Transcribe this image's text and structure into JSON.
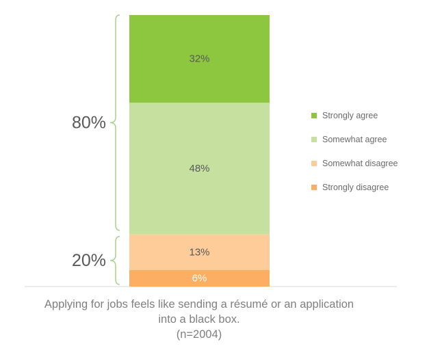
{
  "chart_data": {
    "type": "bar",
    "stacked": true,
    "categories": [
      ""
    ],
    "series": [
      {
        "name": "Strongly agree",
        "values": [
          32
        ],
        "color": "#8dc63f",
        "label": "32%",
        "label_color": "#595959"
      },
      {
        "name": "Somewhat agree",
        "values": [
          48
        ],
        "color": "#c5e09f",
        "label": "48%",
        "label_color": "#595959"
      },
      {
        "name": "Somewhat disagree",
        "values": [
          13
        ],
        "color": "#fdcc99",
        "label": "13%",
        "label_color": "#595959"
      },
      {
        "name": "Strongly disagree",
        "values": [
          6
        ],
        "color": "#fcae63",
        "label": "6%",
        "label_color": "#ffffff"
      }
    ],
    "groups": [
      {
        "label": "80%",
        "series": [
          "Strongly agree",
          "Somewhat agree"
        ]
      },
      {
        "label": "20%",
        "series": [
          "Somewhat disagree",
          "Strongly disagree"
        ]
      }
    ],
    "caption": {
      "line1": "Applying for jobs feels like sending a résumé or an application",
      "line2": "into a black box.",
      "line3": "(n=2004)"
    },
    "legend_position": "right",
    "grid": false,
    "bracket_color": "#a9d18e"
  }
}
